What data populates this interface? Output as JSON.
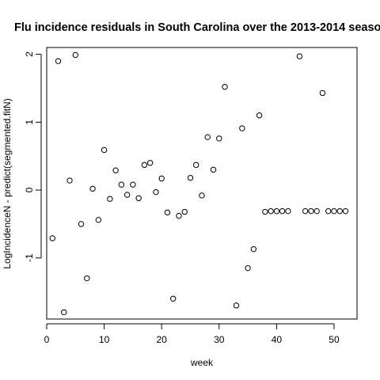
{
  "chart_data": {
    "type": "scatter",
    "title": "Flu incidence residuals in South Carolina over the 2013-2014 seaso",
    "xlabel": "week",
    "ylabel": "LogIncidenceN - predict(segmented.fitN)",
    "xlim": [
      0,
      54
    ],
    "ylim": [
      -1.9,
      2.1
    ],
    "xticks": [
      0,
      10,
      20,
      30,
      40,
      50
    ],
    "yticks": [
      -1,
      0,
      1,
      2
    ],
    "grid": false,
    "legend": "none",
    "marker": "open-circle",
    "marker_color": "#000000",
    "x": [
      1,
      2,
      3,
      4,
      5,
      6,
      7,
      8,
      9,
      10,
      11,
      12,
      13,
      14,
      15,
      16,
      17,
      18,
      19,
      20,
      21,
      22,
      23,
      24,
      25,
      26,
      27,
      28,
      29,
      30,
      31,
      32,
      33,
      34,
      35,
      36,
      37,
      38,
      39,
      40,
      41,
      42,
      43,
      44,
      45,
      46,
      47,
      48,
      49,
      50,
      51,
      52
    ],
    "y": [
      -0.71,
      1.9,
      -1.8,
      0.14,
      1.99,
      -0.5,
      -1.3,
      0.02,
      -0.44,
      0.59,
      -0.13,
      0.29,
      0.08,
      -0.07,
      0.08,
      -0.12,
      0.37,
      0.4,
      -0.03,
      0.17,
      -0.33,
      -1.6,
      -0.38,
      -0.32,
      0.18,
      0.37,
      -0.08,
      0.78,
      0.3,
      0.76,
      1.52,
      null,
      -1.7,
      0.91,
      -1.15,
      -0.87,
      1.1,
      -0.32,
      -0.31,
      -0.31,
      -0.31,
      -0.31,
      null,
      1.97,
      -0.31,
      -0.31,
      -0.31,
      1.43,
      -0.31,
      -0.31,
      -0.31,
      -0.31
    ]
  }
}
